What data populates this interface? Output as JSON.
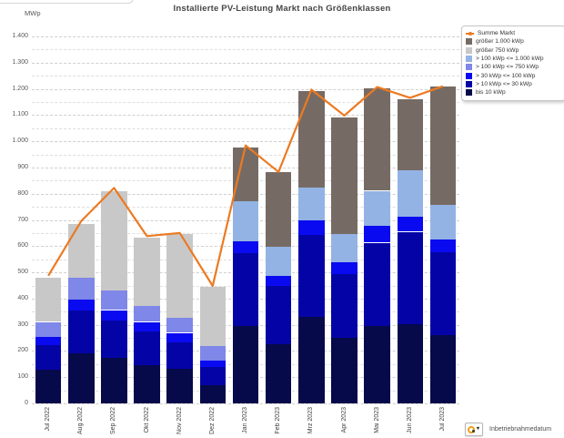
{
  "title": "Installierte PV-Leistung Markt nach Größenklassen",
  "y_axis_unit": "MWp",
  "footer": {
    "cycle_button_label": "Inbetriebnahmedatum",
    "cycle_icon": "cycle-icon"
  },
  "colors": {
    "line": "#ec7a22",
    "gt_1000": "#766b64",
    "gt_750": "#c8c8c8",
    "s100_1000": "#93b3e4",
    "s100_750": "#7f87e8",
    "s30_100": "#0a0af0",
    "s10_30": "#0404a6",
    "bis10": "#06094a"
  },
  "chart_data": {
    "type": "bar",
    "stacked": true,
    "grid": true,
    "legend_position": "top-right",
    "title": "Installierte PV-Leistung Markt nach Größenklassen",
    "xlabel": "Inbetriebnahmedatum",
    "ylabel": "MWp",
    "ylim": [
      0,
      1400
    ],
    "y_major_step": 100,
    "y_minor_step": 50,
    "categories": [
      "Jul 2022",
      "Aug 2022",
      "Sep 2022",
      "Okt 2022",
      "Nov 2022",
      "Dez 2022",
      "Jan 2023",
      "Feb 2023",
      "Mrz 2023",
      "Apr 2023",
      "Mai 2023",
      "Jun 2023",
      "Jul 2023"
    ],
    "series": [
      {
        "name": "bis 10 kWp",
        "color": "#06094a",
        "values": [
          130,
          192,
          175,
          146,
          133,
          69,
          296,
          226,
          331,
          249,
          296,
          304,
          261
        ]
      },
      {
        "name": "> 10 kWp <= 30 kWp",
        "color": "#0404a6",
        "values": [
          91,
          163,
          140,
          128,
          99,
          70,
          276,
          221,
          312,
          245,
          317,
          351,
          317
        ]
      },
      {
        "name": "> 30 kWp <= 100 kWp",
        "color": "#0a0af0",
        "values": [
          34,
          41,
          41,
          37,
          37,
          23,
          48,
          41,
          55,
          45,
          65,
          58,
          47
        ]
      },
      {
        "name": "> 100 kWp <= 750 kWp",
        "color": "#7f87e8",
        "values": [
          56,
          84,
          75,
          62,
          56,
          58,
          0,
          0,
          0,
          0,
          0,
          0,
          0
        ]
      },
      {
        "name": "> 100 kWp <= 1.000 kWp",
        "color": "#93b3e4",
        "values": [
          0,
          0,
          0,
          0,
          0,
          0,
          151,
          111,
          125,
          108,
          133,
          175,
          131
        ]
      },
      {
        "name": "größer 750 kWp",
        "color": "#c8c8c8",
        "values": [
          167,
          204,
          379,
          260,
          321,
          225,
          0,
          0,
          0,
          0,
          0,
          0,
          0
        ]
      },
      {
        "name": "größer 1.000 kWp",
        "color": "#766b64",
        "values": [
          0,
          0,
          0,
          0,
          0,
          0,
          207,
          282,
          368,
          445,
          392,
          273,
          452
        ]
      }
    ],
    "line_series": {
      "name": "Summe Markt",
      "color": "#ec7a22",
      "values": [
        487,
        695,
        822,
        638,
        650,
        448,
        984,
        883,
        1197,
        1098,
        1207,
        1166,
        1210
      ]
    },
    "legend": [
      {
        "label": "Summe Markt",
        "type": "line",
        "color": "#ec7a22"
      },
      {
        "label": "größer 1.000 kWp",
        "type": "box",
        "color": "#766b64"
      },
      {
        "label": "größer 750 kWp",
        "type": "box",
        "color": "#c8c8c8"
      },
      {
        "label": "> 100 kWp <= 1.000 kWp",
        "type": "box",
        "color": "#93b3e4"
      },
      {
        "label": "> 100 kWp <= 750 kWp",
        "type": "box",
        "color": "#7f87e8"
      },
      {
        "label": "> 30 kWp <= 100 kWp",
        "type": "box",
        "color": "#0a0af0"
      },
      {
        "label": "> 10 kWp <= 30 kWp",
        "type": "box",
        "color": "#0404a6"
      },
      {
        "label": "bis 10 kWp",
        "type": "box",
        "color": "#06094a"
      }
    ]
  }
}
